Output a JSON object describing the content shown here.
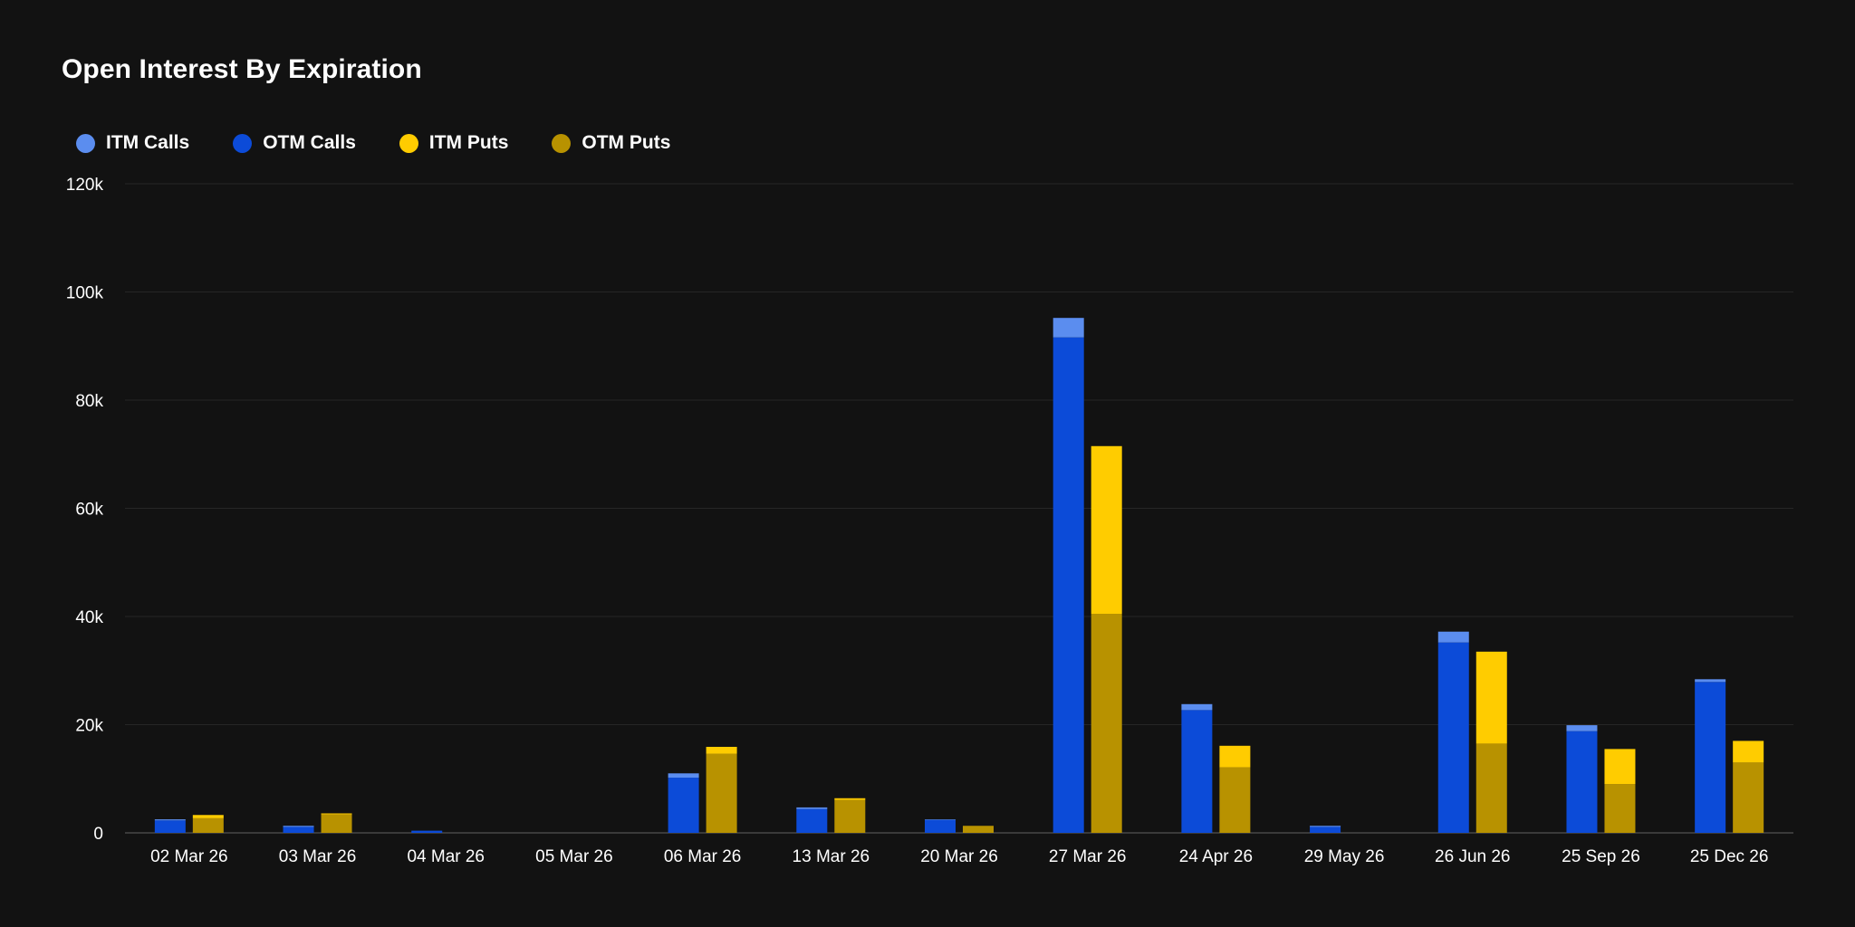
{
  "colors": {
    "background": "#121212",
    "grid": "#262626",
    "axis": "#3a3a3a",
    "itm_calls": "#5b8def",
    "otm_calls": "#0c4bd8",
    "itm_puts": "#ffcc00",
    "otm_puts": "#b89200"
  },
  "chart_data": {
    "type": "bar",
    "stacked": true,
    "title": "Open Interest By Expiration",
    "xlabel": "",
    "ylabel": "",
    "ylim": [
      0,
      120000
    ],
    "yticks": [
      {
        "value": 0,
        "label": "0"
      },
      {
        "value": 20000,
        "label": "20k"
      },
      {
        "value": 40000,
        "label": "40k"
      },
      {
        "value": 60000,
        "label": "60k"
      },
      {
        "value": 80000,
        "label": "80k"
      },
      {
        "value": 100000,
        "label": "100k"
      },
      {
        "value": 120000,
        "label": "120k"
      }
    ],
    "grid": true,
    "legend_position": "top-left",
    "categories": [
      "02 Mar 26",
      "03 Mar 26",
      "04 Mar 26",
      "05 Mar 26",
      "06 Mar 26",
      "13 Mar 26",
      "20 Mar 26",
      "27 Mar 26",
      "24 Apr 26",
      "29 May 26",
      "26 Jun 26",
      "25 Sep 26",
      "25 Dec 26"
    ],
    "series": [
      {
        "name": "ITM Calls",
        "stack": "calls",
        "color_key": "itm_calls",
        "values": [
          200,
          200,
          0,
          0,
          800,
          300,
          100,
          3600,
          1100,
          200,
          2000,
          1100,
          500
        ]
      },
      {
        "name": "OTM Calls",
        "stack": "calls",
        "color_key": "otm_calls",
        "values": [
          2300,
          1100,
          400,
          0,
          10200,
          4400,
          2400,
          91600,
          22700,
          1100,
          35200,
          18800,
          27900
        ]
      },
      {
        "name": "ITM Puts",
        "stack": "puts",
        "color_key": "itm_puts",
        "values": [
          600,
          200,
          0,
          0,
          1300,
          300,
          0,
          31000,
          4000,
          0,
          17000,
          6500,
          4000
        ]
      },
      {
        "name": "OTM Puts",
        "stack": "puts",
        "color_key": "otm_puts",
        "values": [
          2700,
          3400,
          0,
          0,
          14600,
          6100,
          1300,
          40500,
          12100,
          0,
          16500,
          9000,
          13000
        ]
      }
    ]
  }
}
